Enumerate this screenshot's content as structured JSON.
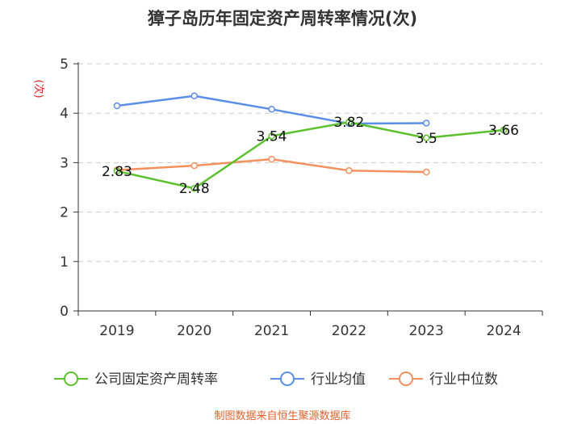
{
  "chart_data": {
    "type": "line",
    "title": "獐子岛历年固定资产周转率情况(次)",
    "ylabel": "(次)",
    "xlabel": "",
    "categories": [
      "2019",
      "2020",
      "2021",
      "2022",
      "2023",
      "2024"
    ],
    "ylim": [
      0,
      5
    ],
    "yticks": [
      0,
      1,
      2,
      3,
      4,
      5
    ],
    "grid": true,
    "legend_position": "bottom",
    "series": [
      {
        "name": "公司固定资产周转率",
        "color": "#5cc12e",
        "values": [
          2.83,
          2.48,
          3.54,
          3.82,
          3.5,
          3.66
        ],
        "labels": [
          "2.83",
          "2.48",
          "3.54",
          "3.82",
          "3.5",
          "3.66"
        ]
      },
      {
        "name": "行业均值",
        "color": "#5b8ee6",
        "values": [
          4.15,
          4.35,
          4.08,
          3.79,
          3.8,
          null
        ]
      },
      {
        "name": "行业中位数",
        "color": "#f4905e",
        "values": [
          2.85,
          2.94,
          3.07,
          2.84,
          2.81,
          null
        ]
      }
    ],
    "source": "制图数据来自恒生聚源数据库"
  }
}
